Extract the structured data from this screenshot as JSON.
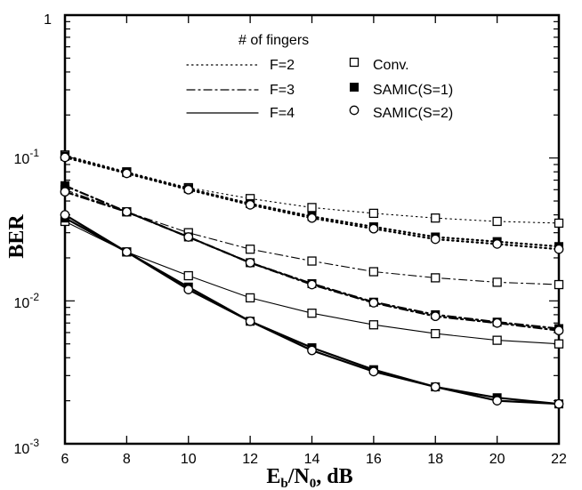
{
  "chart_data": {
    "type": "line",
    "xlabel": "Eb/N0, dB",
    "xlabel_parts": {
      "main": "E",
      "sub_b": "b",
      "slash": "/N",
      "sub_0": "0",
      "tail": ", dB"
    },
    "ylabel": "BER",
    "x_ticks": [
      6,
      8,
      10,
      12,
      14,
      16,
      18,
      20,
      22
    ],
    "x_tick_labels": [
      "6",
      "8",
      "10",
      "12",
      "14",
      "16",
      "18",
      "20",
      "22"
    ],
    "xlim": [
      6,
      22
    ],
    "y_scale": "log",
    "ylim": [
      0.001,
      1
    ],
    "y_tick_labels": {
      "top": "1",
      "e1_base": "10",
      "e1_exp": "-1",
      "e2_base": "10",
      "e2_exp": "-2",
      "e3_base": "10",
      "e3_exp": "-3"
    },
    "grid": false,
    "legend": {
      "placement": "top-center",
      "title": "# of fingers",
      "line_entries": [
        {
          "label": "F=2",
          "style": "dotted"
        },
        {
          "label": "F=3",
          "style": "dashdot"
        },
        {
          "label": "F=4",
          "style": "solid"
        }
      ],
      "marker_entries": [
        {
          "label": "Conv.",
          "marker": "open-square"
        },
        {
          "label": "SAMIC(S=1)",
          "marker": "filled-square"
        },
        {
          "label": "SAMIC(S=2)",
          "marker": "open-circle"
        }
      ]
    },
    "x": [
      6,
      8,
      10,
      12,
      14,
      16,
      18,
      20,
      22
    ],
    "series": [
      {
        "fingers": "F=2",
        "method": "Conv.",
        "style": "dotted",
        "marker": "open-square",
        "values": [
          0.105,
          0.08,
          0.062,
          0.052,
          0.045,
          0.041,
          0.038,
          0.036,
          0.035
        ]
      },
      {
        "fingers": "F=2",
        "method": "SAMIC(S=1)",
        "style": "dotted",
        "marker": "filled-square",
        "values": [
          0.103,
          0.079,
          0.061,
          0.048,
          0.039,
          0.033,
          0.028,
          0.026,
          0.024
        ]
      },
      {
        "fingers": "F=2",
        "method": "SAMIC(S=2)",
        "style": "dotted",
        "marker": "open-circle",
        "values": [
          0.101,
          0.078,
          0.06,
          0.047,
          0.038,
          0.032,
          0.027,
          0.025,
          0.023
        ]
      },
      {
        "fingers": "F=3",
        "method": "Conv.",
        "style": "dashdot",
        "marker": "open-square",
        "values": [
          0.06,
          0.042,
          0.03,
          0.023,
          0.019,
          0.016,
          0.0145,
          0.0135,
          0.013
        ]
      },
      {
        "fingers": "F=3",
        "method": "SAMIC(S=1)",
        "style": "dashdot",
        "marker": "filled-square",
        "values": [
          0.064,
          0.042,
          0.028,
          0.0185,
          0.0132,
          0.0098,
          0.008,
          0.0071,
          0.0064
        ]
      },
      {
        "fingers": "F=3",
        "method": "SAMIC(S=2)",
        "style": "dashdot",
        "marker": "open-circle",
        "values": [
          0.058,
          0.042,
          0.028,
          0.0185,
          0.013,
          0.0097,
          0.0078,
          0.007,
          0.0062
        ]
      },
      {
        "fingers": "F=4",
        "method": "Conv.",
        "style": "solid",
        "marker": "open-square",
        "values": [
          0.036,
          0.022,
          0.015,
          0.0105,
          0.0082,
          0.0068,
          0.0059,
          0.0053,
          0.005
        ]
      },
      {
        "fingers": "F=4",
        "method": "SAMIC(S=1)",
        "style": "solid",
        "marker": "filled-square",
        "values": [
          0.038,
          0.022,
          0.0125,
          0.0072,
          0.0047,
          0.0033,
          0.0025,
          0.0021,
          0.0019
        ]
      },
      {
        "fingers": "F=4",
        "method": "SAMIC(S=2)",
        "style": "solid",
        "marker": "open-circle",
        "values": [
          0.04,
          0.022,
          0.012,
          0.0072,
          0.0045,
          0.0032,
          0.0025,
          0.002,
          0.0019
        ]
      }
    ]
  }
}
